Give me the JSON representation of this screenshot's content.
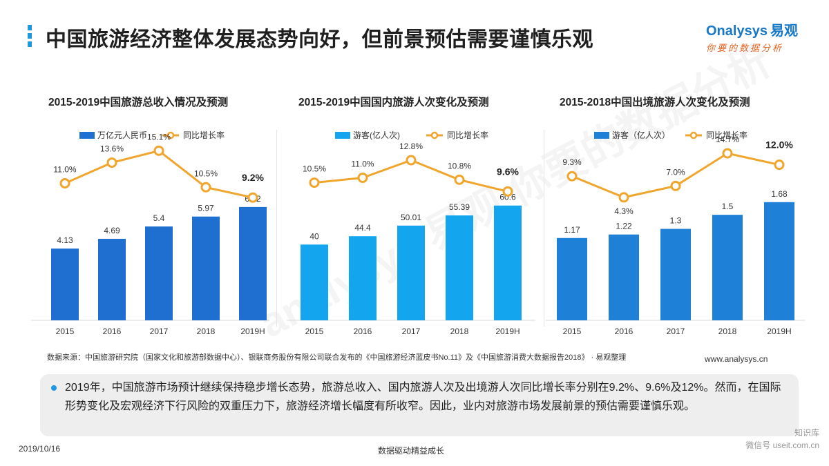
{
  "header": {
    "title": "中国旅游经济整体发展态势向好，但前景预估需要谨慎乐观",
    "bar_colors": [
      "#1f97e0",
      "#1f97e0",
      "#1f97e0",
      "#1f97e0"
    ]
  },
  "logo": {
    "en": "Onalysys",
    "cn": "易观",
    "slogan": "你要的数据分析"
  },
  "watermark": "analysys 易观  你要的数据分析",
  "chart_data": [
    {
      "type": "bar",
      "title": "2015-2019中国旅游总收入情况及预测",
      "categories": [
        "2015",
        "2016",
        "2017",
        "2018",
        "2019H"
      ],
      "series": [
        {
          "name": "万亿元人民币",
          "type": "bar",
          "values": [
            4.13,
            4.69,
            5.4,
            5.97,
            6.52
          ],
          "labels": [
            "4.13",
            "4.69",
            "5.4",
            "5.97",
            "6.52"
          ],
          "color": "#1f6fd1"
        },
        {
          "name": "同比增长率",
          "type": "line",
          "values": [
            11.0,
            13.6,
            15.1,
            10.5,
            9.2
          ],
          "labels": [
            "11.0%",
            "13.6%",
            "15.1%",
            "10.5%",
            "9.2%"
          ],
          "color": "#f0a52c"
        }
      ],
      "highlight_index": 4,
      "bar_max": 8.5,
      "line_range": [
        8,
        16
      ]
    },
    {
      "type": "bar",
      "title": "2015-2019中国国内旅游人次变化及预测",
      "categories": [
        "2015",
        "2016",
        "2017",
        "2018",
        "2019H"
      ],
      "series": [
        {
          "name": "游客(亿人次)",
          "type": "bar",
          "values": [
            40,
            44.4,
            50.01,
            55.39,
            60.6
          ],
          "labels": [
            "40",
            "44.4",
            "50.01",
            "55.39",
            "60.6"
          ],
          "color": "#13a6ee"
        },
        {
          "name": "同比增长率",
          "type": "line",
          "values": [
            10.5,
            11.0,
            12.8,
            10.8,
            9.6
          ],
          "labels": [
            "10.5%",
            "11.0%",
            "12.8%",
            "10.8%",
            "9.6%"
          ],
          "color": "#f0a52c"
        }
      ],
      "highlight_index": 4,
      "bar_max": 78,
      "line_range": [
        8,
        14.5
      ]
    },
    {
      "type": "bar",
      "title": "2015-2018中国出境旅游人次变化及预测",
      "categories": [
        "2015",
        "2016",
        "2017",
        "2018",
        "2019H"
      ],
      "series": [
        {
          "name": "游客（亿人次）",
          "type": "bar",
          "values": [
            1.17,
            1.22,
            1.3,
            1.5,
            1.68
          ],
          "labels": [
            "1.17",
            "1.22",
            "1.3",
            "1.5",
            "1.68"
          ],
          "color": "#1f80d8"
        },
        {
          "name": "同比增长率",
          "type": "line",
          "values": [
            9.3,
            4.3,
            7.0,
            14.7,
            12.0
          ],
          "labels": [
            "9.3%",
            "4.3%",
            "7.0%",
            "14.7%",
            "12.0%"
          ],
          "color": "#f0a52c"
        }
      ],
      "highlight_index": 4,
      "bar_max": 2.1,
      "line_range": [
        2,
        17
      ]
    }
  ],
  "source": "数据来源：中国旅游研究院（国家文化和旅游部数据中心）、银联商务股份有限公司联合发布的《中国旅游经济蓝皮书No.11》及《中国旅游消费大数据报告2018》 · 易观整理",
  "website": "www.analysys.cn",
  "note": "2019年，中国旅游市场预计继续保持稳步增长态势，旅游总收入、国内旅游人次及出境游人次同比增长率分别在9.2%、9.6%及12%。然而，在国际形势变化及宏观经济下行风险的双重压力下，旅游经济增长幅度有所收窄。因此，业内对旅游市场发展前景的预估需要谨慎乐观。",
  "footer": {
    "date": "2019/10/16",
    "center": "数据驱动精益成长",
    "wm_top": "知识库",
    "wm_bottom": "微信号 useit.com.cn"
  }
}
